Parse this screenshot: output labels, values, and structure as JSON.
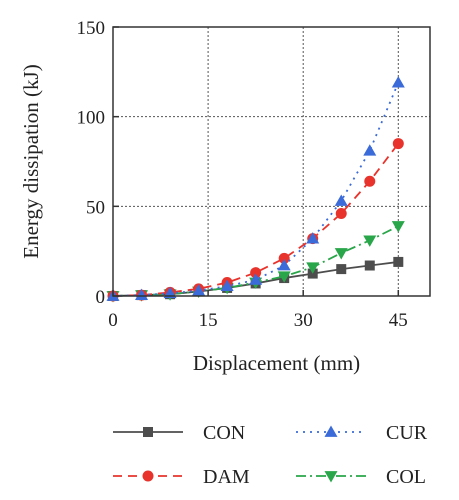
{
  "chart_data": {
    "type": "line",
    "xlabel": "Displacement (mm)",
    "ylabel": "Energy dissipation (kJ)",
    "xlim": [
      0,
      50
    ],
    "ylim": [
      0,
      150
    ],
    "x_ticks": [
      0,
      15,
      30,
      45
    ],
    "y_ticks": [
      0,
      50,
      100,
      150
    ],
    "grid": true,
    "legend_position": "bottom",
    "series": [
      {
        "name": "CON",
        "color": "#4d4d4d",
        "marker": "square",
        "line_style": "solid",
        "x": [
          0,
          4.5,
          9,
          13.5,
          18,
          22.5,
          27,
          31.5,
          36,
          40.5,
          45
        ],
        "y": [
          0,
          0.5,
          1,
          2.5,
          4.5,
          7,
          10,
          12.5,
          15,
          17,
          19
        ]
      },
      {
        "name": "CUR",
        "color": "#3b6bd8",
        "marker": "triangle-up",
        "line_style": "dotted",
        "x": [
          0,
          4.5,
          9,
          13.5,
          18,
          22.5,
          27,
          31.5,
          36,
          40.5,
          45
        ],
        "y": [
          0,
          0.5,
          1.5,
          3,
          5.5,
          9,
          17,
          32,
          53,
          81,
          119
        ]
      },
      {
        "name": "DAM",
        "color": "#e8332c",
        "marker": "circle",
        "line_style": "dashed",
        "x": [
          0,
          4.5,
          9,
          13.5,
          18,
          22.5,
          27,
          31.5,
          36,
          40.5,
          45
        ],
        "y": [
          0,
          0.5,
          2,
          4,
          7.5,
          13,
          21,
          32,
          46,
          64,
          85
        ]
      },
      {
        "name": "COL",
        "color": "#2aa64a",
        "marker": "triangle-down",
        "line_style": "dashdot",
        "x": [
          0,
          4.5,
          9,
          13.5,
          18,
          22.5,
          27,
          31.5,
          36,
          40.5,
          45
        ],
        "y": [
          0,
          0.5,
          1,
          2.5,
          4.5,
          7.5,
          11,
          16,
          24,
          31,
          39
        ]
      }
    ]
  },
  "legend": {
    "items": [
      {
        "label": "CON",
        "series": 0
      },
      {
        "label": "CUR",
        "series": 1
      },
      {
        "label": "DAM",
        "series": 2
      },
      {
        "label": "COL",
        "series": 3
      }
    ]
  }
}
